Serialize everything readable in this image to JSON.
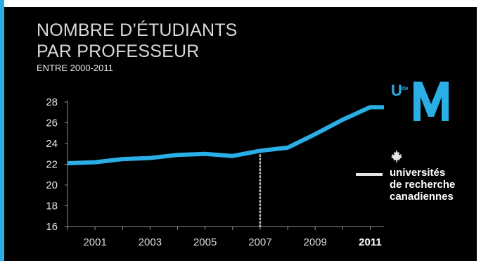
{
  "slide": {
    "title_line1": "NOMBRE D’ÉTUDIANTS",
    "title_line2": "PAR PROFESSEUR",
    "subtitle": "ENTRE 2000-2011"
  },
  "logo": {
    "letters": "UdeM",
    "accent_color": "#29aee6"
  },
  "organization": {
    "line1": "universités",
    "line2": "de recherche",
    "line3": "canadiennes",
    "icon": "maple-leaf-icon"
  },
  "chart_data": {
    "type": "line",
    "title": "NOMBRE D’ÉTUDIANTS PAR PROFESSEUR",
    "subtitle": "ENTRE 2000-2011",
    "x": [
      2000,
      2001,
      2002,
      2003,
      2004,
      2005,
      2006,
      2007,
      2008,
      2009,
      2010,
      2011,
      2011.5
    ],
    "y": [
      22.1,
      22.2,
      22.5,
      22.6,
      22.9,
      23.0,
      22.8,
      23.3,
      23.6,
      24.9,
      26.3,
      27.5,
      27.5
    ],
    "xlim": [
      2000,
      2011.5
    ],
    "ylim": [
      16,
      28
    ],
    "yticks": [
      16,
      18,
      20,
      22,
      24,
      26,
      28
    ],
    "xticks": [
      "2001",
      "2003",
      "2005",
      "2007",
      "2009",
      "2011"
    ],
    "highlight_xtick": "2011",
    "reference_line_x": 2007,
    "line_color": "#29aee6",
    "grid": false
  }
}
